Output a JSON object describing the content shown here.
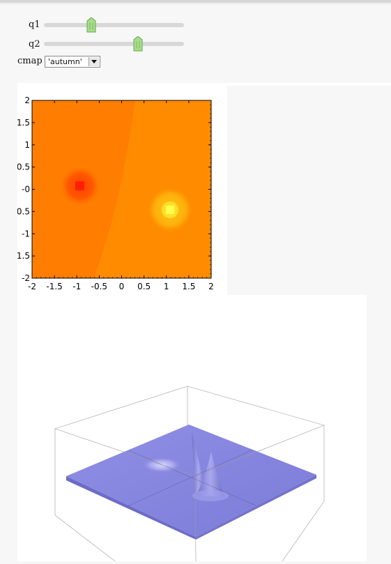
{
  "controls": {
    "q1": {
      "label": "q1",
      "value_fraction": 0.34
    },
    "q2": {
      "label": "q2",
      "value_fraction": 0.67
    },
    "cmap": {
      "label": "cmap",
      "selected": "'autumn'"
    }
  },
  "colors": {
    "slider_handle": "#a6dd8b",
    "contour_left": "#ff7a00",
    "contour_right": "#ff8a00",
    "peak_red": "#ff1a00",
    "peak_yellow": "#ffff30",
    "surface": "#8a8ae0"
  },
  "chart_data": [
    {
      "type": "heatmap",
      "x_ticks": [
        "-2",
        "-1.5",
        "-1",
        "-0.5",
        "0",
        "0.5",
        "1",
        "1.5",
        "2"
      ],
      "y_ticks": [
        "2",
        "1.5",
        "1",
        "0.5",
        "0",
        "-0.5",
        "-1",
        "-1.5",
        "-2"
      ],
      "y_ticks_visible": [
        "2",
        "1.5",
        "1",
        "0.5",
        "-0",
        "0.5",
        "-1",
        "1.5",
        "-2"
      ],
      "xlim": [
        -2,
        2
      ],
      "ylim": [
        -2,
        2
      ],
      "features": [
        {
          "kind": "low",
          "x": -1.0,
          "y": 0.0,
          "color": "#ff1a00"
        },
        {
          "kind": "high",
          "x": 1.05,
          "y": -0.5,
          "color": "#ffff30"
        }
      ]
    },
    {
      "type": "area",
      "kind": "3d-surface",
      "color": "#8a8ae0"
    }
  ]
}
